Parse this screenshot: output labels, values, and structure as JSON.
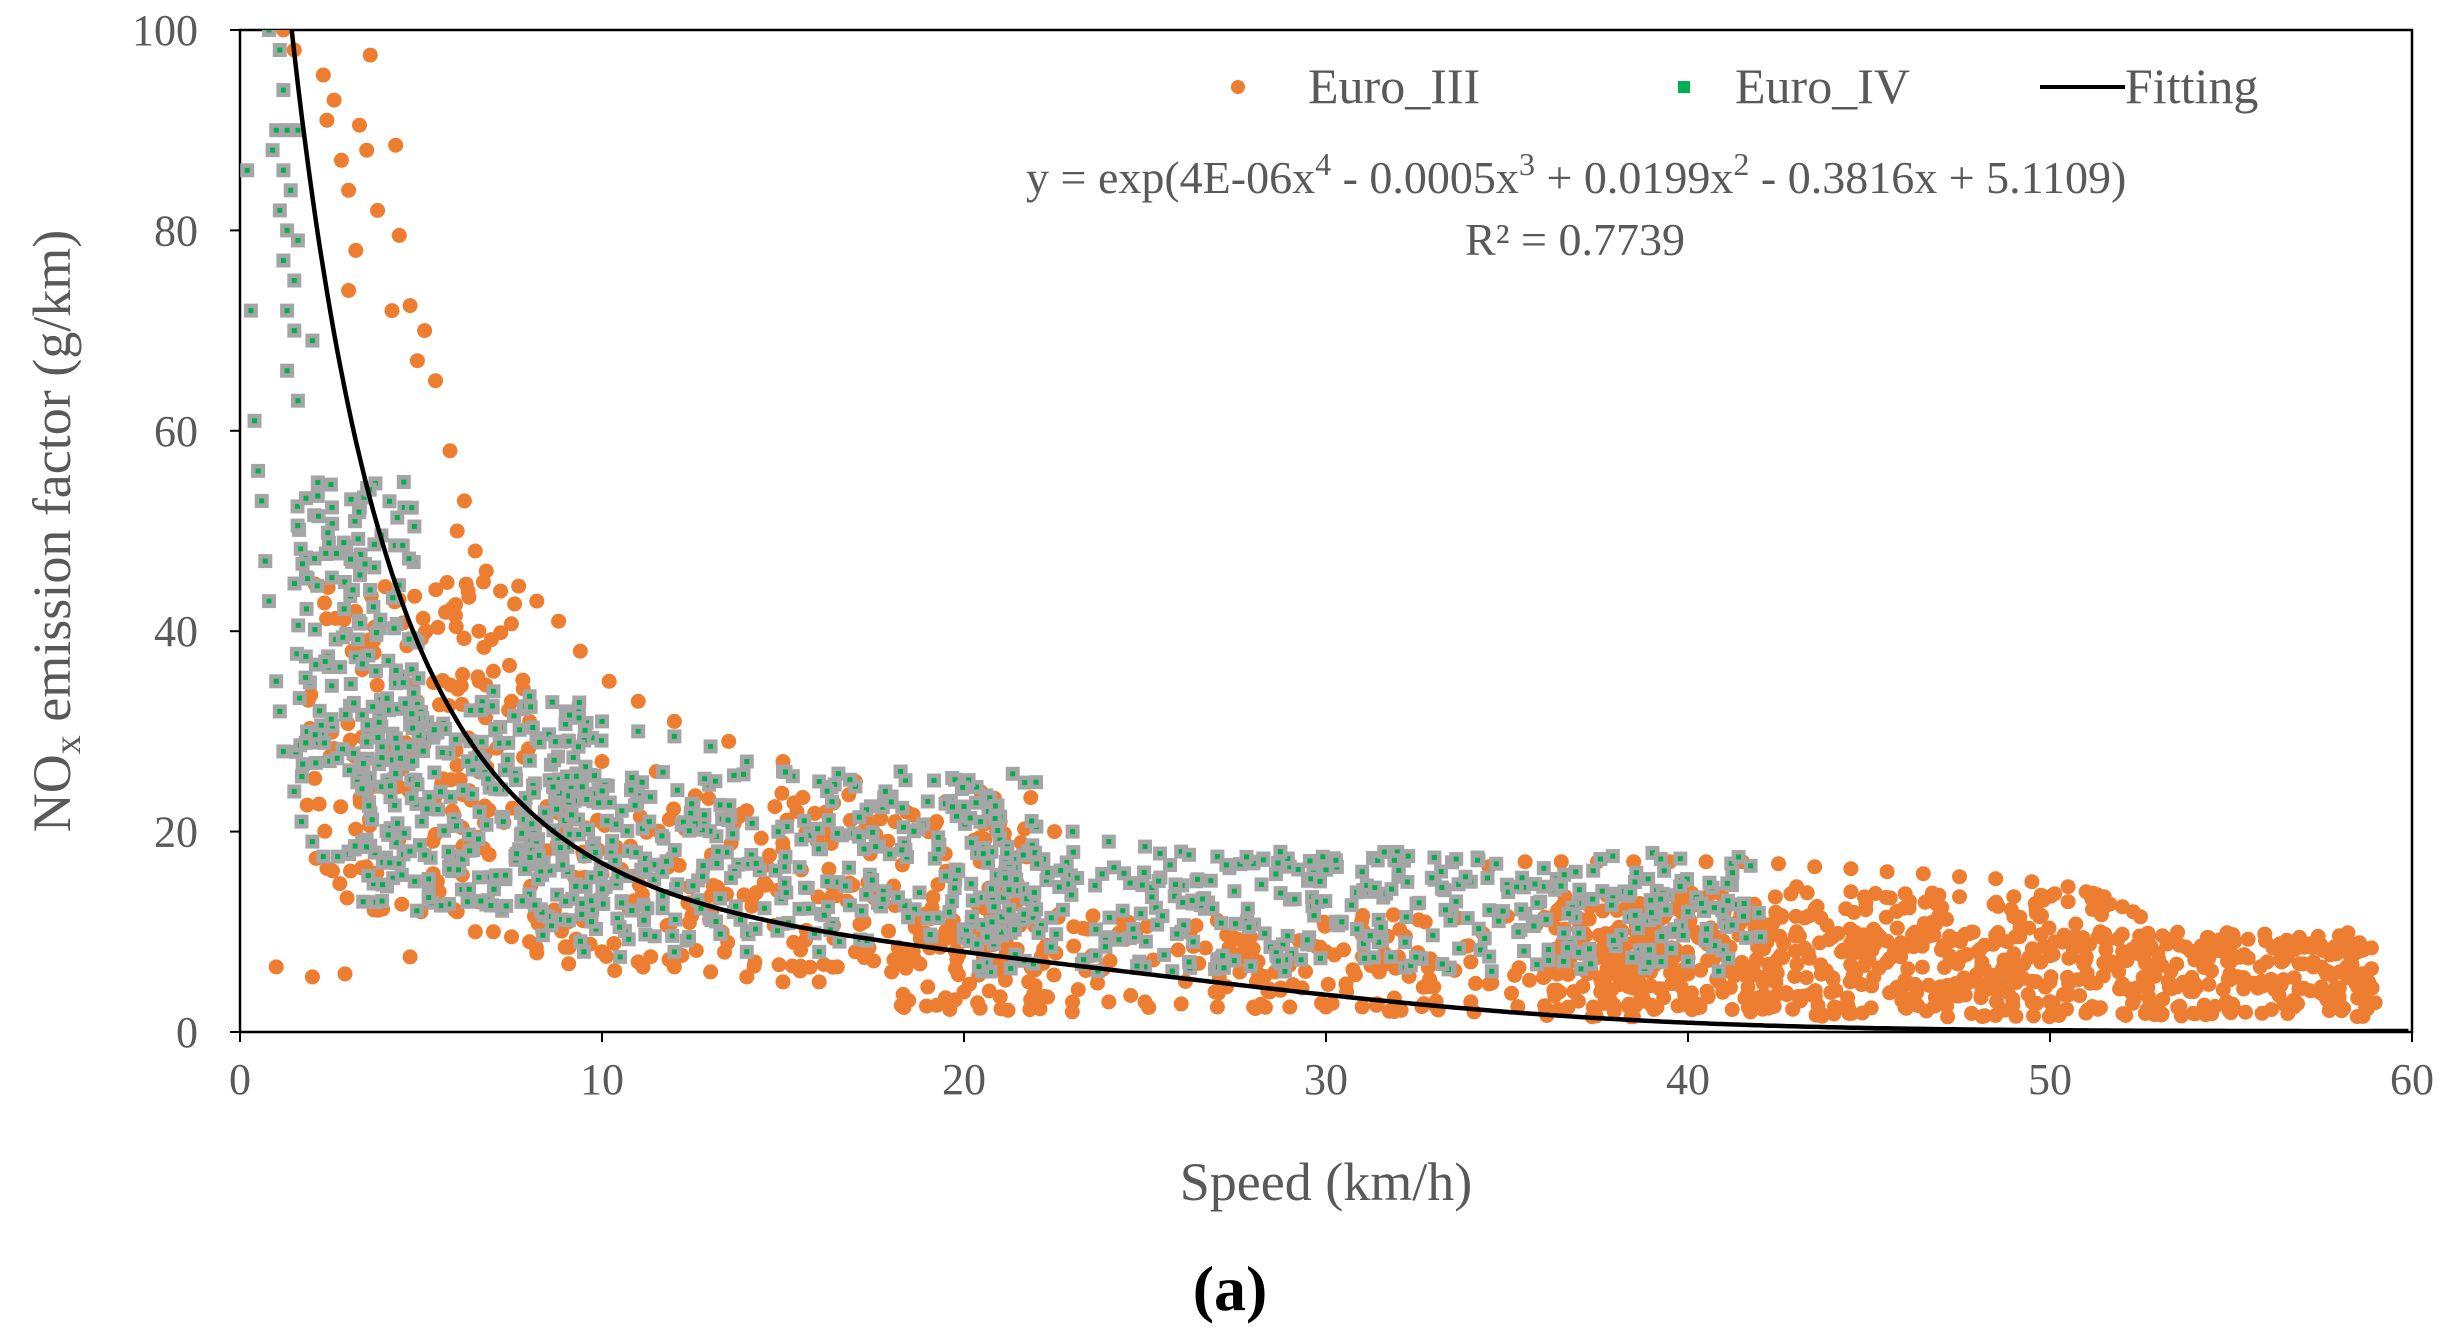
{
  "chart_data": {
    "type": "scatter",
    "xlabel": "Speed (km/h)",
    "ylabel": {
      "prefix": "NO",
      "subscript": "x",
      "suffix": " emission factor (g/km)"
    },
    "xlim": [
      0,
      60
    ],
    "ylim": [
      0,
      100
    ],
    "xticks": [
      0,
      10,
      20,
      30,
      40,
      50,
      60
    ],
    "yticks": [
      0,
      20,
      40,
      60,
      80,
      100
    ],
    "grid": false,
    "legend_position": "top-right",
    "panel_label": "(a)",
    "colors": {
      "euro3": "#ED7D31",
      "euro4_fill": "#A5A5A5",
      "euro4_dot": "#00B050",
      "fit": "#000000",
      "axis": "#000000"
    },
    "legend": [
      {
        "name": "Euro_III",
        "marker": "circle"
      },
      {
        "name": "Euro_IV",
        "marker": "square"
      },
      {
        "name": "Fitting",
        "marker": "line"
      }
    ],
    "fit": {
      "model": "exp_poly4",
      "coefficients": [
        5.1109,
        -0.3816,
        0.0199,
        -0.0005,
        4e-06
      ],
      "equation_prefix": "y = exp(4E-06x",
      "equation_parts": [
        {
          "text": "y = exp(4E-06x",
          "sup": "4"
        },
        {
          "text": " - 0.0005x",
          "sup": "3"
        },
        {
          "text": " + 0.0199x",
          "sup": "2"
        },
        {
          "text": " - 0.3816x + 5.1109)",
          "sup": ""
        }
      ],
      "r2_label": "R² = 0.7739",
      "r2": 0.7739
    },
    "series": [
      {
        "name": "Euro_III",
        "marker": "circle",
        "points": [
          [
            1.2,
            100
          ],
          [
            1.5,
            98
          ],
          [
            2.3,
            95.5
          ],
          [
            2.6,
            93
          ],
          [
            2.4,
            91
          ],
          [
            3.3,
            90.5
          ],
          [
            3.6,
            97.5
          ],
          [
            3.5,
            88
          ],
          [
            2.8,
            87
          ],
          [
            4.3,
            88.5
          ],
          [
            3.0,
            84
          ],
          [
            3.8,
            82
          ],
          [
            4.4,
            79.5
          ],
          [
            3.2,
            78
          ],
          [
            3.0,
            74
          ],
          [
            4.2,
            72
          ],
          [
            4.7,
            72.5
          ],
          [
            5.1,
            70
          ],
          [
            4.9,
            67
          ],
          [
            5.4,
            65
          ],
          [
            5.8,
            58
          ],
          [
            6.2,
            53
          ],
          [
            6.5,
            48
          ],
          [
            6.8,
            46
          ],
          [
            7.2,
            44
          ],
          [
            7.7,
            44.5
          ],
          [
            8.2,
            43
          ],
          [
            8.8,
            41
          ],
          [
            9.4,
            38
          ],
          [
            10.2,
            35
          ],
          [
            11.0,
            33
          ],
          [
            12.0,
            31
          ],
          [
            13.5,
            29
          ],
          [
            15.0,
            27
          ],
          [
            17.0,
            25
          ],
          [
            19.5,
            23
          ],
          [
            21.0,
            21
          ],
          [
            22.5,
            20
          ],
          [
            6.0,
            50
          ],
          [
            6.3,
            44
          ],
          [
            6.6,
            40
          ],
          [
            7.0,
            36
          ],
          [
            7.5,
            33
          ],
          [
            8.0,
            31
          ],
          [
            9.0,
            29
          ],
          [
            10.0,
            27
          ],
          [
            11.5,
            26
          ],
          [
            13.0,
            25
          ],
          [
            1.0,
            6.5
          ],
          [
            2.0,
            5.5
          ],
          [
            2.9,
            5.8
          ],
          [
            4.7,
            7.5
          ],
          [
            5.0,
            12
          ],
          [
            5.5,
            14
          ],
          [
            6.0,
            12
          ],
          [
            6.5,
            10
          ],
          [
            7.0,
            10
          ],
          [
            7.5,
            9.5
          ],
          [
            8.0,
            9
          ],
          [
            9.0,
            8.5
          ],
          [
            10.0,
            8
          ],
          [
            11.0,
            7
          ],
          [
            12.0,
            6.5
          ],
          [
            13.0,
            6
          ],
          [
            14.0,
            5.5
          ],
          [
            15.0,
            5
          ],
          [
            16.0,
            5
          ],
          [
            16.5,
            6.5
          ],
          [
            17.0,
            8
          ],
          [
            18.0,
            6
          ],
          [
            19.0,
            4.5
          ],
          [
            20.0,
            4
          ],
          [
            21.0,
            3.5
          ],
          [
            22.0,
            3
          ],
          [
            23.0,
            3
          ],
          [
            24.0,
            3
          ],
          [
            25.0,
            3
          ],
          [
            26.0,
            2.8
          ],
          [
            27.0,
            2.5
          ],
          [
            28.0,
            2.5
          ],
          [
            29.0,
            2.5
          ],
          [
            30.0,
            2.5
          ],
          [
            31.0,
            2.5
          ],
          [
            32.0,
            2.5
          ],
          [
            33.0,
            2.7
          ],
          [
            34.0,
            3
          ],
          [
            34.5,
            16.5
          ],
          [
            35.5,
            17
          ],
          [
            36.5,
            17
          ],
          [
            37.5,
            17
          ],
          [
            38.5,
            17
          ],
          [
            39.5,
            17
          ],
          [
            40.5,
            17
          ],
          [
            41.5,
            17
          ],
          [
            42.5,
            16.8
          ],
          [
            43.5,
            16.5
          ],
          [
            44.5,
            16.3
          ],
          [
            45.5,
            16
          ],
          [
            46.5,
            15.8
          ],
          [
            47.5,
            15.5
          ],
          [
            48.5,
            15.3
          ],
          [
            49.5,
            15
          ],
          [
            50.5,
            14.5
          ],
          [
            51.0,
            14
          ],
          [
            51.5,
            13.5
          ],
          [
            52.0,
            12.5
          ],
          [
            52.3,
            12
          ],
          [
            52.5,
            11.5
          ],
          [
            51.5,
            12.5
          ],
          [
            50.5,
            13
          ],
          [
            49.0,
            13.5
          ],
          [
            47.5,
            13.5
          ],
          [
            46.0,
            13.8
          ],
          [
            44.5,
            14
          ],
          [
            43.0,
            14.5
          ],
          [
            41.0,
            12
          ],
          [
            42.0,
            11
          ],
          [
            43.0,
            10
          ],
          [
            44.0,
            9.5
          ],
          [
            45.0,
            9
          ],
          [
            46.0,
            8.5
          ],
          [
            47.0,
            8.2
          ],
          [
            48.0,
            8
          ],
          [
            49.0,
            7.8
          ],
          [
            50.0,
            7.6
          ],
          [
            51.0,
            7.5
          ],
          [
            52.0,
            7.4
          ],
          [
            53.0,
            7.3
          ],
          [
            54.0,
            7.2
          ],
          [
            55.0,
            7.1
          ],
          [
            56.0,
            7
          ],
          [
            57.0,
            6.8
          ],
          [
            57.5,
            6.5
          ],
          [
            58.0,
            6
          ],
          [
            58.5,
            5.5
          ],
          [
            58.8,
            5
          ],
          [
            58.5,
            4.5
          ],
          [
            57.5,
            4.5
          ],
          [
            56.0,
            4.7
          ],
          [
            54.0,
            4.8
          ],
          [
            52.0,
            4.8
          ],
          [
            50.0,
            5
          ],
          [
            48.0,
            5
          ],
          [
            46.0,
            5.2
          ],
          [
            44.0,
            5.4
          ],
          [
            42.0,
            5.5
          ],
          [
            40.0,
            5.8
          ],
          [
            38.0,
            6
          ],
          [
            36.0,
            6.5
          ],
          [
            34.0,
            7
          ],
          [
            32.0,
            7.5
          ],
          [
            30.0,
            8
          ]
        ],
        "clusters": [
          {
            "xmin": 1.8,
            "xmax": 8,
            "ymin": 12,
            "ymax": 45,
            "count": 160
          },
          {
            "xmin": 8,
            "xmax": 22,
            "ymin": 6,
            "ymax": 24,
            "count": 230
          },
          {
            "xmin": 18,
            "xmax": 40,
            "ymin": 2,
            "ymax": 12,
            "count": 260
          },
          {
            "xmin": 36,
            "xmax": 59,
            "ymin": 1.5,
            "ymax": 10,
            "count": 620
          },
          {
            "xmin": 36,
            "xmax": 52,
            "ymin": 9,
            "ymax": 14,
            "count": 140
          }
        ]
      },
      {
        "name": "Euro_IV",
        "marker": "square",
        "points": [
          [
            0.8,
            100
          ],
          [
            1.1,
            98
          ],
          [
            1.2,
            94
          ],
          [
            1.0,
            90
          ],
          [
            1.3,
            90
          ],
          [
            1.6,
            90
          ],
          [
            0.9,
            88
          ],
          [
            0.2,
            86
          ],
          [
            1.2,
            86
          ],
          [
            1.4,
            84
          ],
          [
            1.1,
            82
          ],
          [
            1.3,
            80
          ],
          [
            1.6,
            79
          ],
          [
            1.2,
            77
          ],
          [
            1.5,
            75
          ],
          [
            0.3,
            72
          ],
          [
            1.3,
            72
          ],
          [
            1.5,
            70
          ],
          [
            2.0,
            69
          ],
          [
            1.3,
            66
          ],
          [
            1.6,
            63
          ],
          [
            0.4,
            61
          ],
          [
            0.5,
            56
          ],
          [
            0.6,
            53
          ],
          [
            0.7,
            47
          ],
          [
            0.8,
            43
          ],
          [
            1.0,
            35
          ],
          [
            1.1,
            32
          ],
          [
            1.2,
            28
          ],
          [
            1.5,
            24
          ],
          [
            1.7,
            21
          ],
          [
            2.0,
            19
          ],
          [
            2.3,
            17.5
          ],
          [
            2.7,
            17.5
          ],
          [
            3.0,
            18
          ],
          [
            7.0,
            34
          ],
          [
            8.0,
            33.5
          ],
          [
            9.0,
            32
          ],
          [
            10.0,
            31
          ],
          [
            11.0,
            30
          ],
          [
            12.0,
            29.5
          ],
          [
            13.0,
            28.5
          ],
          [
            14.0,
            27
          ],
          [
            15.0,
            26
          ],
          [
            16.0,
            25
          ],
          [
            17.0,
            24.5
          ],
          [
            18.0,
            23.5
          ],
          [
            19.0,
            23
          ],
          [
            20.0,
            22.5
          ],
          [
            21.0,
            21.5
          ],
          [
            22.0,
            20.5
          ],
          [
            23.0,
            20
          ],
          [
            24.0,
            19
          ],
          [
            25.0,
            18.5
          ],
          [
            26.0,
            18
          ],
          [
            27.0,
            17.5
          ],
          [
            28.0,
            17
          ],
          [
            29.0,
            16.5
          ],
          [
            30.0,
            16.2
          ],
          [
            31.0,
            16
          ],
          [
            32.0,
            15.5
          ],
          [
            33.0,
            15.2
          ],
          [
            34.0,
            15
          ],
          [
            35.0,
            14.7
          ],
          [
            36.0,
            14.5
          ],
          [
            37.0,
            14.2
          ],
          [
            38.0,
            13.8
          ],
          [
            39.0,
            13
          ],
          [
            40.0,
            12
          ],
          [
            41.0,
            11
          ],
          [
            42.0,
            9.5
          ],
          [
            9.5,
            8
          ],
          [
            10.5,
            7.5
          ],
          [
            12.0,
            8
          ],
          [
            14.0,
            8
          ],
          [
            16.0,
            8
          ]
        ],
        "clusters": [
          {
            "xmin": 1.5,
            "xmax": 5,
            "ymin": 25,
            "ymax": 55,
            "count": 150
          },
          {
            "xmin": 3,
            "xmax": 10,
            "ymin": 12,
            "ymax": 33,
            "count": 260
          },
          {
            "xmin": 8,
            "xmax": 22,
            "ymin": 9,
            "ymax": 26,
            "count": 340
          },
          {
            "xmin": 20,
            "xmax": 42,
            "ymin": 6,
            "ymax": 18,
            "count": 380
          }
        ]
      }
    ]
  }
}
